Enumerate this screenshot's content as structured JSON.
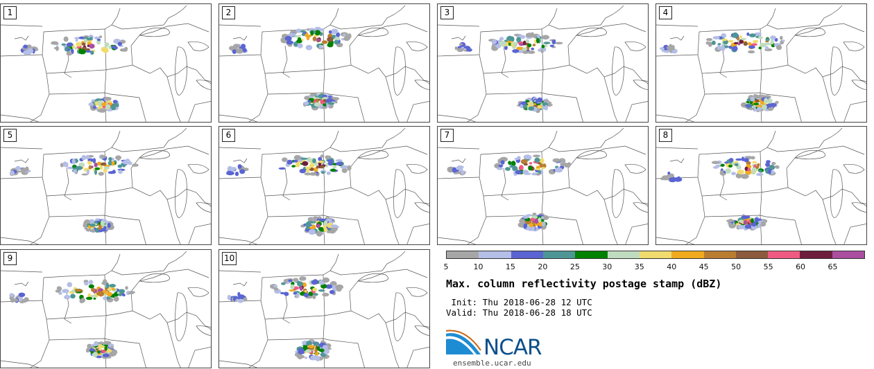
{
  "panels": [
    {
      "label": "1"
    },
    {
      "label": "2"
    },
    {
      "label": "3"
    },
    {
      "label": "4"
    },
    {
      "label": "5"
    },
    {
      "label": "6"
    },
    {
      "label": "7"
    },
    {
      "label": "8"
    },
    {
      "label": "9"
    },
    {
      "label": "10"
    }
  ],
  "colorbar": {
    "colors": [
      "#a6a6a6",
      "#b4bee6",
      "#5a64d2",
      "#4e9696",
      "#008200",
      "#c0dcc0",
      "#f0dc6e",
      "#f0aa1e",
      "#b97d32",
      "#8c5a3c",
      "#f05a82",
      "#6e1e3c",
      "#aa4ea0"
    ],
    "tick_labels": [
      "5",
      "10",
      "15",
      "20",
      "25",
      "30",
      "35",
      "40",
      "45",
      "50",
      "55",
      "60",
      "65"
    ]
  },
  "legend": {
    "title": "Max. column reflectivity postage stamp (dBZ)",
    "init": " Init: Thu 2018-06-28 12 UTC",
    "valid": "Valid: Thu 2018-06-28 18 UTC"
  },
  "branding": {
    "logo_text": "NCAR",
    "url": "ensemble.ucar.edu",
    "logo_color": "#0b4f8a"
  }
}
